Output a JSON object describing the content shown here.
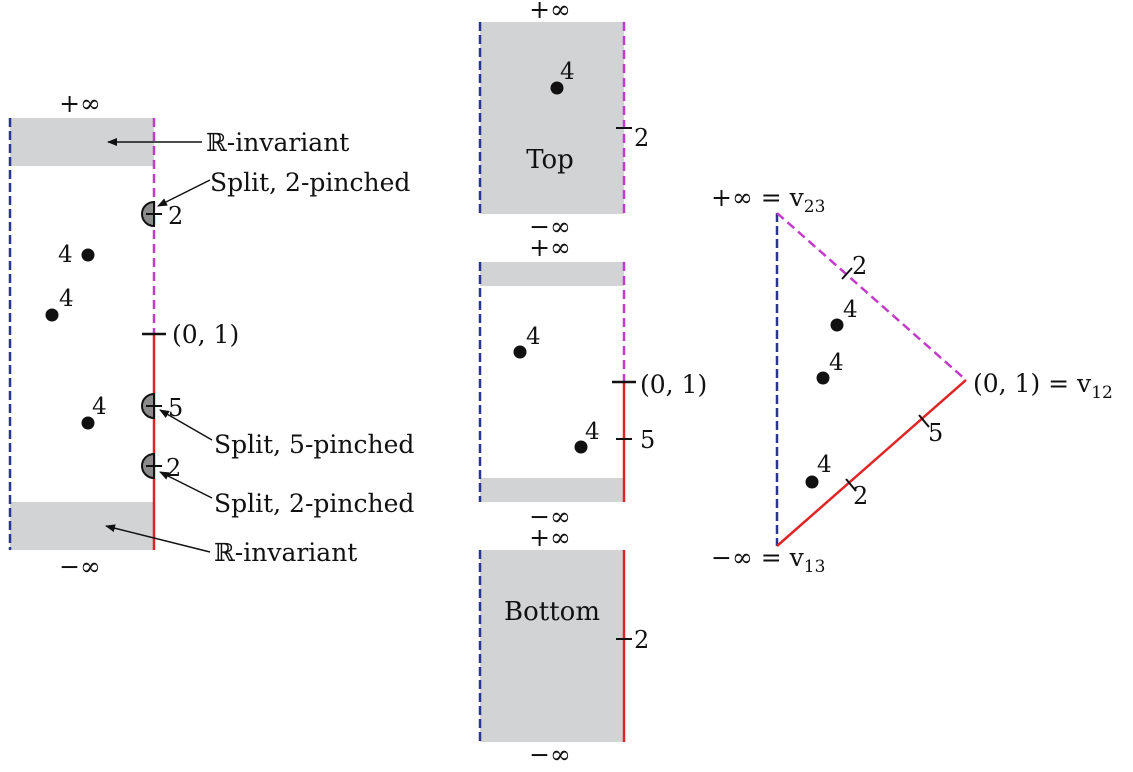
{
  "colors": {
    "shade": "#d1d3d5",
    "blue_edge": "#2a3590",
    "magenta_edge": "#c23cc9",
    "red_edge": "#e02426",
    "ink": "#111111",
    "pinch_fill": "#8c8c8c"
  },
  "left": {
    "plus_inf": "+∞",
    "minus_inf": "−∞",
    "r_invariant_top": "ℝ-invariant",
    "r_invariant_bottom": "ℝ-invariant",
    "split_top": "Split, 2-pinched",
    "split_mid": "Split, 5-pinched",
    "split_bot": "Split, 2-pinched",
    "pinch_top": "2",
    "pinch_mid": "5",
    "pinch_bot": "2",
    "point_label_1": "4",
    "point_label_2": "4",
    "point_label_3": "4",
    "corner_label": "(0, 1)"
  },
  "top_panel": {
    "plus_inf": "+∞",
    "minus_inf": "−∞",
    "title": "Top",
    "point_label": "4",
    "tick_label": "2"
  },
  "middle_panel": {
    "plus_inf": "+∞",
    "minus_inf": "−∞",
    "point_label_1": "4",
    "point_label_2": "4",
    "corner_label": "(0, 1)",
    "tick_label": "5"
  },
  "bottom_panel": {
    "plus_inf": "+∞",
    "minus_inf": "−∞",
    "title": "Bottom",
    "tick_label": "2"
  },
  "triangle": {
    "top_vertex": "+∞ = v",
    "top_vertex_sub": "23",
    "right_vertex": "(0, 1) = v",
    "right_vertex_sub": "12",
    "bottom_vertex": "−∞ = v",
    "bottom_vertex_sub": "13",
    "tick_top": "2",
    "tick_mid": "5",
    "tick_bot": "2",
    "point_label_1": "4",
    "point_label_2": "4",
    "point_label_3": "4"
  }
}
